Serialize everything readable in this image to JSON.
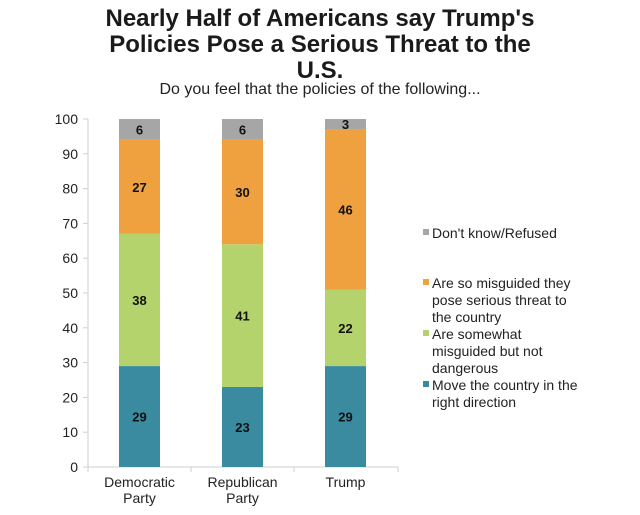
{
  "chart_data": {
    "type": "bar",
    "stacked": true,
    "title": "Nearly Half of Americans say Trump's Policies Pose a Serious Threat to the U.S.",
    "title_lines": [
      "Nearly Half of Americans say Trump's",
      "Policies Pose a Serious Threat to the",
      "U.S."
    ],
    "subtitle": "Do you feel that the policies of the following...",
    "xlabel": "",
    "ylabel": "",
    "ylim": [
      0,
      100
    ],
    "yticks": [
      0,
      10,
      20,
      30,
      40,
      50,
      60,
      70,
      80,
      90,
      100
    ],
    "grid": false,
    "legend_position": "right",
    "categories": [
      {
        "label_lines": [
          "Democratic",
          "Party"
        ],
        "label": "Democratic Party"
      },
      {
        "label_lines": [
          "Republican",
          "Party"
        ],
        "label": "Republican Party"
      },
      {
        "label_lines": [
          "Trump"
        ],
        "label": "Trump"
      }
    ],
    "series": [
      {
        "name": "Move the country in the right direction",
        "color": "#3a8aa0",
        "values": [
          29,
          23,
          29
        ]
      },
      {
        "name": "Are somewhat misguided but not dangerous",
        "color": "#b5d36d",
        "values": [
          38,
          41,
          22
        ]
      },
      {
        "name": "Are so misguided they pose serious threat to the country",
        "color": "#eea13e",
        "values": [
          27,
          30,
          46
        ]
      },
      {
        "name": "Don't know/Refused",
        "color": "#a6a6a6",
        "values": [
          6,
          6,
          3
        ]
      }
    ],
    "legend": [
      {
        "label_lines": [
          "Don't know/Refused"
        ],
        "color": "#a6a6a6"
      },
      {
        "label_lines": [
          "Are so misguided they",
          "pose serious threat to",
          "the country"
        ],
        "color": "#eea13e"
      },
      {
        "label_lines": [
          "Are somewhat",
          "misguided but not",
          "dangerous"
        ],
        "color": "#b5d36d"
      },
      {
        "label_lines": [
          "Move the country in the",
          "right direction"
        ],
        "color": "#3a8aa0"
      }
    ]
  }
}
